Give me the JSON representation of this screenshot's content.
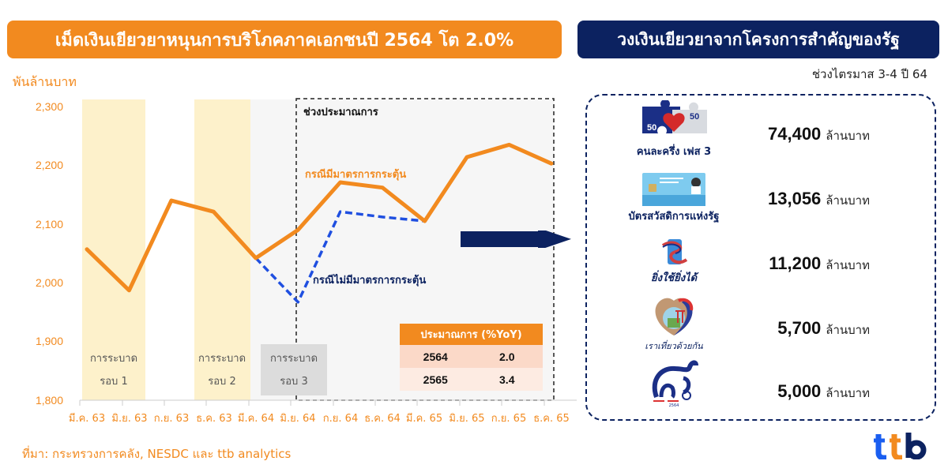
{
  "header": {
    "left_title": "เม็ดเงินเยียวยาหนุนการบริโภคภาคเอกชนปี 2564 โต 2.0%",
    "right_title": "วงเงินเยียวยาจากโครงการสำคัญของรัฐ",
    "right_subtitle": "ช่วงไตรมาส 3-4 ปี 64"
  },
  "chart": {
    "unit_label": "พันล้านบาท",
    "projection_label": "ช่วงประมาณการ",
    "stimulus_label": "กรณีมีมาตรการกระตุ้น",
    "no_stimulus_label": "กรณีไม่มีมาตรการกระตุ้น",
    "waves": [
      {
        "line1": "การระบาด",
        "line2": "รอบ 1"
      },
      {
        "line1": "การระบาด",
        "line2": "รอบ 2"
      },
      {
        "line1": "การระบาด",
        "line2": "รอบ 3"
      }
    ],
    "colors": {
      "stimulus_line": "#f28a1f",
      "no_stimulus_line": "#1f4fe0",
      "wave_band": "#fdf1cb",
      "projection_bg": "#f5f5f5",
      "navy": "#0c2260"
    }
  },
  "chart_data": {
    "type": "line",
    "title": "เม็ดเงินเยียวยาหนุนการบริโภคภาคเอกชนปี 2564 โต 2.0%",
    "xlabel": "",
    "ylabel": "พันล้านบาท",
    "ylim": [
      1800,
      2300
    ],
    "yticks": [
      "2,300",
      "2,200",
      "2,100",
      "2,000",
      "1,900",
      "1,800"
    ],
    "grid": false,
    "categories": [
      "มี.ค. 63",
      "มิ.ย. 63",
      "ก.ย. 63",
      "ธ.ค. 63",
      "มี.ค. 64",
      "มิ.ย. 64",
      "ก.ย. 64",
      "ธ.ค. 64",
      "มี.ค. 65",
      "มิ.ย. 65",
      "ก.ย. 65",
      "ธ.ค. 65"
    ],
    "series": [
      {
        "name": "กรณีมีมาตรการกระตุ้น",
        "style": "solid",
        "values": [
          2057,
          1987,
          2140,
          2121,
          2042,
          2090,
          2171,
          2162,
          2105,
          2214,
          2235,
          2203
        ]
      },
      {
        "name": "กรณีไม่มีมาตรการกระตุ้น",
        "style": "dashed",
        "values": [
          null,
          null,
          null,
          null,
          2042,
          1967,
          2121,
          2112,
          2105,
          null,
          null,
          null
        ]
      }
    ],
    "annotations": [
      "การระบาด รอบ 1",
      "การระบาด รอบ 2",
      "การระบาด รอบ 3",
      "ช่วงประมาณการ"
    ],
    "forecast_table": {
      "header": "ประมาณการ (%YoY)",
      "rows": [
        [
          "2564",
          "2.0"
        ],
        [
          "2565",
          "3.4"
        ]
      ]
    }
  },
  "forecast_table": {
    "header": "ประมาณการ (%YoY)",
    "rows": [
      {
        "year": "2564",
        "value": "2.0"
      },
      {
        "year": "2565",
        "value": "3.4"
      }
    ]
  },
  "programs": [
    {
      "name": "คนละครึ่ง เฟส 3",
      "value": "74,400",
      "unit": "ล้านบาท",
      "icon": "half-half-puzzle-icon"
    },
    {
      "name": "บัตรสวัสดิการแห่งรัฐ",
      "value": "13,056",
      "unit": "ล้านบาท",
      "icon": "welfare-card-icon"
    },
    {
      "name": "ยิ่งใช้ยิ่งได้",
      "value": "11,200",
      "unit": "ล้านบาท",
      "icon": "phone-ribbon-icon"
    },
    {
      "name": "เราเที่ยวด้วยกัน",
      "value": "5,700",
      "unit": "ล้านบาท",
      "icon": "travel-heart-icon"
    },
    {
      "name": "ทัวร์เที่ยวไทย 2564",
      "value": "5,000",
      "unit": "ล้านบาท",
      "icon": "elephant-icon"
    }
  ],
  "footer": {
    "source": "ที่มา: กระทรวงการคลัง, NESDC และ ttb analytics",
    "logo": "ttb"
  }
}
